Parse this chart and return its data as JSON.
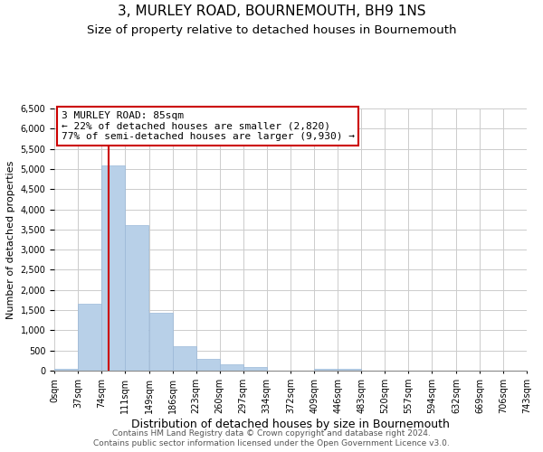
{
  "title": "3, MURLEY ROAD, BOURNEMOUTH, BH9 1NS",
  "subtitle": "Size of property relative to detached houses in Bournemouth",
  "xlabel": "Distribution of detached houses by size in Bournemouth",
  "ylabel": "Number of detached properties",
  "bin_edges": [
    0,
    37,
    74,
    111,
    149,
    186,
    223,
    260,
    297,
    334,
    372,
    409,
    446,
    483,
    520,
    557,
    594,
    632,
    669,
    706,
    743
  ],
  "bar_heights": [
    50,
    1650,
    5080,
    3600,
    1430,
    610,
    300,
    150,
    90,
    0,
    0,
    50,
    50,
    0,
    0,
    0,
    0,
    0,
    0,
    0
  ],
  "bar_color": "#b8d0e8",
  "bar_edgecolor": "#9ab8d8",
  "property_line_x": 85,
  "property_line_color": "#cc0000",
  "ylim": [
    0,
    6500
  ],
  "yticks": [
    0,
    500,
    1000,
    1500,
    2000,
    2500,
    3000,
    3500,
    4000,
    4500,
    5000,
    5500,
    6000,
    6500
  ],
  "annotation_title": "3 MURLEY ROAD: 85sqm",
  "annotation_line1": "← 22% of detached houses are smaller (2,820)",
  "annotation_line2": "77% of semi-detached houses are larger (9,930) →",
  "annotation_box_color": "#ffffff",
  "annotation_box_edge": "#cc0000",
  "footer_line1": "Contains HM Land Registry data © Crown copyright and database right 2024.",
  "footer_line2": "Contains public sector information licensed under the Open Government Licence v3.0.",
  "background_color": "#ffffff",
  "grid_color": "#cccccc",
  "title_fontsize": 11,
  "subtitle_fontsize": 9.5,
  "xlabel_fontsize": 9,
  "ylabel_fontsize": 8,
  "tick_fontsize": 7,
  "footer_fontsize": 6.5,
  "annotation_fontsize": 8
}
